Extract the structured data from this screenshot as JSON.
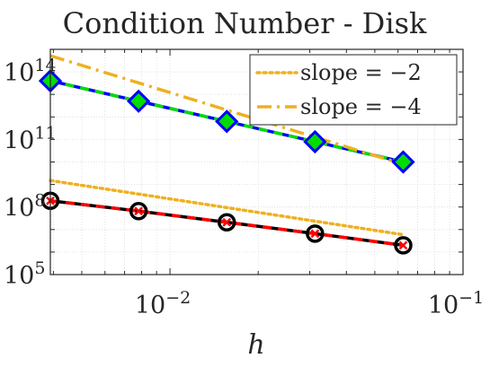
{
  "chart_data": {
    "type": "line",
    "title": "Condition Number - Disk",
    "xlabel": "h",
    "ylabel": "",
    "x_scale": "log",
    "y_scale": "log",
    "xlim": [
      0.003906,
      0.1
    ],
    "ylim": [
      100000,
      1000000000000000
    ],
    "grid": true,
    "minor_grid": true,
    "legend_position": "top-right",
    "x_ticks": [
      {
        "value": 0.01,
        "base": "10",
        "exp": "−2"
      },
      {
        "value": 0.1,
        "base": "10",
        "exp": "−1"
      }
    ],
    "y_ticks": [
      {
        "value": 100000,
        "base": "10",
        "exp": "5"
      },
      {
        "value": 100000000,
        "base": "10",
        "exp": "8"
      },
      {
        "value": 100000000000,
        "base": "10",
        "exp": "11"
      },
      {
        "value": 100000000000000,
        "base": "10",
        "exp": "14"
      }
    ],
    "series": [
      {
        "style": "blue-green-dash-diamond",
        "colors": [
          "#0000ff",
          "#00dd00"
        ],
        "marker": "diamond",
        "x": [
          0.003906,
          0.007813,
          0.015625,
          0.03125,
          0.0625
        ],
        "y": [
          40000000000000,
          5000000000000,
          630000000000,
          79000000000,
          10000000000
        ]
      },
      {
        "style": "black-red-dash-circle",
        "colors": [
          "#000000",
          "#ff0000"
        ],
        "marker": "circle-x",
        "x": [
          0.003906,
          0.007813,
          0.015625,
          0.03125,
          0.0625
        ],
        "y": [
          190000000,
          66000000,
          21000000,
          6600000,
          2000000
        ]
      },
      {
        "name": "slope = −2",
        "style": "dotted",
        "color": "#edb120",
        "x": [
          0.003906,
          0.0625
        ],
        "y": [
          1500000000,
          5900000
        ]
      },
      {
        "name": "slope = −4",
        "style": "dash-dot",
        "color": "#edb120",
        "x": [
          0.003906,
          0.0625
        ],
        "y": [
          520000000000000,
          7900000000
        ]
      }
    ]
  }
}
